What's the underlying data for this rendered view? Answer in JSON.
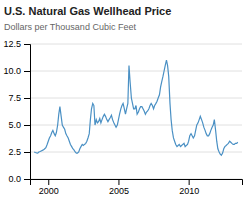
{
  "chart_data": {
    "type": "line",
    "title": "U.S. Natural Gas Wellhead Price",
    "subtitle": "Dollars per Thousand Cubic Feet",
    "color": "#4a90c4",
    "grid": true,
    "xlim": [
      1998.7,
      2013.8
    ],
    "xticks": [
      2000,
      2005,
      2010
    ],
    "ylim": [
      0.0,
      12.5
    ],
    "yticks": [
      {
        "value": 0.0,
        "label": "0.0"
      },
      2.5,
      {
        "value": 5.0,
        "label": "5.0"
      },
      7.5,
      {
        "value": 10.0,
        "label": "10.0"
      },
      12.5
    ],
    "x": [
      1999.0,
      1999.08,
      1999.17,
      1999.25,
      1999.33,
      1999.42,
      1999.5,
      1999.58,
      1999.67,
      1999.75,
      1999.83,
      1999.92,
      2000.0,
      2000.08,
      2000.17,
      2000.25,
      2000.33,
      2000.42,
      2000.5,
      2000.58,
      2000.67,
      2000.75,
      2000.83,
      2000.92,
      2001.0,
      2001.08,
      2001.17,
      2001.25,
      2001.33,
      2001.42,
      2001.5,
      2001.58,
      2001.67,
      2001.75,
      2001.83,
      2001.92,
      2002.0,
      2002.08,
      2002.17,
      2002.25,
      2002.33,
      2002.42,
      2002.5,
      2002.58,
      2002.67,
      2002.75,
      2002.83,
      2002.92,
      2003.0,
      2003.08,
      2003.17,
      2003.25,
      2003.33,
      2003.42,
      2003.5,
      2003.58,
      2003.67,
      2003.75,
      2003.83,
      2003.92,
      2004.0,
      2004.08,
      2004.17,
      2004.25,
      2004.33,
      2004.42,
      2004.5,
      2004.58,
      2004.67,
      2004.75,
      2004.83,
      2004.92,
      2005.0,
      2005.08,
      2005.17,
      2005.25,
      2005.33,
      2005.42,
      2005.5,
      2005.58,
      2005.67,
      2005.75,
      2005.83,
      2005.92,
      2006.0,
      2006.08,
      2006.17,
      2006.25,
      2006.33,
      2006.42,
      2006.5,
      2006.58,
      2006.67,
      2006.75,
      2006.83,
      2006.92,
      2007.0,
      2007.08,
      2007.17,
      2007.25,
      2007.33,
      2007.42,
      2007.5,
      2007.58,
      2007.67,
      2007.75,
      2007.83,
      2007.92,
      2008.0,
      2008.08,
      2008.17,
      2008.25,
      2008.33,
      2008.42,
      2008.5,
      2008.58,
      2008.67,
      2008.75,
      2008.83,
      2008.92,
      2009.0,
      2009.08,
      2009.17,
      2009.25,
      2009.33,
      2009.42,
      2009.5,
      2009.58,
      2009.67,
      2009.75,
      2009.83,
      2009.92,
      2010.0,
      2010.08,
      2010.17,
      2010.25,
      2010.33,
      2010.42,
      2010.5,
      2010.58,
      2010.67,
      2010.75,
      2010.83,
      2010.92,
      2011.0,
      2011.08,
      2011.17,
      2011.25,
      2011.33,
      2011.42,
      2011.5,
      2011.58,
      2011.67,
      2011.75,
      2011.83,
      2011.92,
      2012.0,
      2012.08,
      2012.17,
      2012.25,
      2012.33,
      2012.42,
      2012.5,
      2012.58,
      2012.67,
      2012.75,
      2012.83,
      2012.92,
      2013.0,
      2013.08,
      2013.17,
      2013.25,
      2013.33,
      2013.42,
      2013.5
    ],
    "values": [
      2.5,
      2.45,
      2.42,
      2.4,
      2.5,
      2.55,
      2.6,
      2.65,
      2.7,
      2.8,
      2.9,
      3.2,
      3.5,
      3.8,
      4.0,
      4.3,
      4.5,
      4.2,
      4.0,
      4.3,
      5.0,
      6.0,
      6.7,
      5.8,
      5.0,
      4.8,
      4.6,
      4.2,
      4.0,
      3.8,
      3.5,
      3.2,
      3.0,
      2.8,
      2.7,
      2.5,
      2.4,
      2.4,
      2.5,
      2.8,
      3.0,
      3.2,
      3.1,
      3.2,
      3.3,
      3.5,
      3.8,
      4.2,
      5.5,
      6.5,
      7.0,
      6.8,
      5.0,
      5.5,
      5.2,
      5.3,
      5.6,
      5.2,
      5.5,
      5.8,
      6.0,
      5.8,
      5.5,
      5.3,
      5.5,
      5.7,
      5.9,
      5.5,
      5.2,
      5.0,
      4.8,
      5.0,
      5.5,
      6.0,
      6.5,
      6.8,
      7.0,
      6.5,
      6.0,
      6.5,
      7.0,
      10.5,
      9.0,
      7.5,
      7.0,
      6.5,
      6.5,
      6.8,
      6.0,
      6.2,
      6.5,
      6.7,
      6.7,
      6.5,
      6.3,
      6.0,
      6.2,
      6.3,
      6.5,
      6.8,
      7.0,
      6.8,
      6.5,
      6.8,
      7.0,
      7.2,
      7.5,
      7.8,
      8.5,
      9.0,
      9.5,
      10.0,
      10.5,
      11.0,
      10.5,
      9.5,
      7.0,
      5.5,
      4.5,
      3.8,
      3.5,
      3.2,
      3.0,
      3.1,
      3.2,
      3.0,
      3.1,
      3.2,
      3.3,
      3.0,
      3.1,
      3.2,
      3.5,
      4.0,
      4.2,
      4.0,
      3.8,
      4.0,
      4.5,
      5.0,
      5.2,
      5.5,
      5.8,
      5.5,
      5.2,
      4.8,
      4.5,
      4.2,
      4.0,
      4.0,
      4.2,
      4.5,
      4.8,
      5.0,
      5.5,
      4.5,
      3.5,
      2.8,
      2.5,
      2.3,
      2.2,
      2.4,
      2.8,
      3.0,
      3.1,
      3.2,
      3.3,
      3.5,
      3.4,
      3.3,
      3.2,
      3.2,
      3.3,
      3.3,
      3.4
    ]
  }
}
